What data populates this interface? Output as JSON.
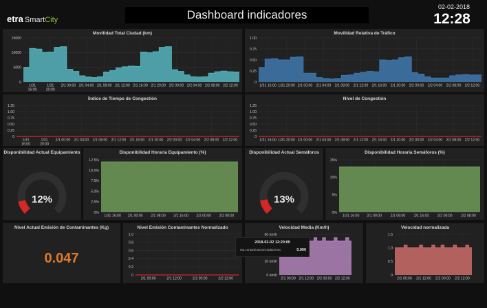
{
  "header": {
    "logo_etra": "etra",
    "logo_smart": "Smart",
    "logo_city": "City",
    "title": "Dashboard indicadores",
    "date": "02-02-2018",
    "time": "12:28"
  },
  "panels": {
    "movilidad_total": {
      "title": "Movilidad Total Ciudad (km)"
    },
    "movilidad_relativa": {
      "title": "Movilidad Relativa de Tráfico"
    },
    "indice_congestion": {
      "title": "Índice de Tiempo de Congestión"
    },
    "nivel_congestion": {
      "title": "Nivel de Congestión"
    },
    "disp_equipamiento": {
      "title": "Disponibilidad Actual Equipamiento",
      "value": "12%"
    },
    "disp_horaria_equipamiento": {
      "title": "Disponibilidad Horaria Equipamiento (%)"
    },
    "disp_semaforos": {
      "title": "Disponibilidad Actual Semáforos",
      "value": "13%"
    },
    "disp_horaria_semaforos": {
      "title": "Disponibilidad Horaria Semáforos (%)"
    },
    "emision_actual": {
      "title": "Nivel Actual Emisión de Contaminantes (Kg)",
      "value": "0.047"
    },
    "emision_normalizado": {
      "title": "Nivel Emisión Contaminantes Normalizado"
    },
    "velocidad_media": {
      "title": "Velocidad Media (Km/h)"
    },
    "velocidad_normalizada": {
      "title": "Velocidad normalizada"
    }
  },
  "tooltip": {
    "time": "2018-02-02 12:20:00",
    "series": "etu.contaminacionciudad.mnc",
    "value": "0.000"
  },
  "colors": {
    "teal": "#55b4bd",
    "blue": "#3e78ae",
    "red": "#d62727",
    "green": "#6e9a58",
    "orange": "#e07a2f",
    "purple": "#b283bb",
    "salmon": "#cc6c68"
  },
  "chart_data": [
    {
      "type": "area",
      "title": "Movilidad Total Ciudad (km)",
      "xticks": [
        "1/31\n16:00",
        "1/31\n20:00",
        "2/1 00:00",
        "2/1 04:00",
        "2/1 08:00",
        "2/1 12:00",
        "2/1 16:00",
        "2/1 20:00",
        "2/2 00:00",
        "2/2 04:00",
        "2/2 08:00",
        "2/2 12:00"
      ],
      "yticks": [
        "0",
        "5000",
        "10000",
        "15000"
      ],
      "ylim": [
        0,
        15000
      ],
      "values": [
        5000,
        11400,
        11200,
        10100,
        10200,
        11800,
        12000,
        4300,
        3600,
        2100,
        1700,
        1500,
        1800,
        3400,
        3900,
        4800,
        5200,
        5400,
        5300,
        10200,
        10000,
        10300,
        11800,
        12000,
        4200,
        3600,
        2400,
        1800,
        1700,
        1800,
        3000,
        3500,
        3700,
        3500,
        3400,
        3300
      ]
    },
    {
      "type": "area",
      "title": "Movilidad Relativa de Tráfico",
      "xticks": [
        "1/31 16:00",
        "1/31 20:00",
        "2/1 00:00",
        "2/1 04:00",
        "2/1 08:00",
        "2/1 12:00",
        "2/1 16:00",
        "2/1 20:00",
        "2/2 00:00",
        "2/2 04:00",
        "2/2 08:00",
        "2/2 12:00"
      ],
      "yticks": [
        "0",
        "0.25",
        "0.50",
        "0.75",
        "1.00"
      ],
      "ylim": [
        0,
        1.0
      ],
      "values": [
        0.33,
        0.52,
        0.53,
        0.5,
        0.5,
        0.56,
        0.57,
        0.2,
        0.2,
        0.1,
        0.08,
        0.07,
        0.08,
        0.15,
        0.16,
        0.2,
        0.22,
        0.24,
        0.23,
        0.5,
        0.49,
        0.5,
        0.55,
        0.57,
        0.21,
        0.18,
        0.12,
        0.09,
        0.09,
        0.09,
        0.14,
        0.16,
        0.17,
        0.16,
        0.16,
        0.16
      ]
    },
    {
      "type": "line",
      "title": "Índice de Tiempo de Congestión",
      "xticks": [
        "1/31\n16:00",
        "1/31\n20:00",
        "2/1 00:00",
        "2/1 04:00",
        "2/1 08:00",
        "2/1 12:00",
        "2/1 16:00",
        "2/1 20:00",
        "2/2 00:00",
        "2/2 04:00",
        "2/2 08:00",
        "2/2 12:00"
      ],
      "yticks": [
        "0",
        "0.25",
        "0.50",
        "0.75",
        "1.00",
        "1.25"
      ],
      "ylim": [
        0,
        1.25
      ],
      "values": [
        0,
        0
      ]
    },
    {
      "type": "line",
      "title": "Nivel de Congestión",
      "xticks": [
        "1/31 16:00",
        "1/31 20:00",
        "2/1 00:00",
        "2/1 04:00",
        "2/1 08:00",
        "2/1 12:00",
        "2/1 16:00",
        "2/1 20:00",
        "2/2 00:00",
        "2/2 04:00",
        "2/2 08:00",
        "2/2 12:00"
      ],
      "yticks": [
        "0",
        "0.25",
        "0.50",
        "0.75",
        "1.00",
        "1.25"
      ],
      "ylim": [
        0,
        1.25
      ],
      "values": [
        0,
        0
      ]
    },
    {
      "type": "area",
      "title": "Disponibilidad Horaria Equipamiento (%)",
      "xticks": [
        "1/31 16:00",
        "2/1 00:00",
        "2/1 08:00",
        "2/1 16:00",
        "2/2 00:00",
        "2/2 08:00"
      ],
      "yticks": [
        "0%",
        "2.5%",
        "5.0%",
        "7.5%",
        "10.0%",
        "12.5%"
      ],
      "ylim": [
        0,
        12.5
      ],
      "values": [
        12.0,
        12.0
      ]
    },
    {
      "type": "area",
      "title": "Disponibilidad Horaria Semáforos (%)",
      "xticks": [
        "1/31 16:00",
        "2/1 00:00",
        "2/1 08:00",
        "2/1 16:00",
        "2/2 00:00",
        "2/2 08:00"
      ],
      "yticks": [
        "0%",
        "5%",
        "10%",
        "15%"
      ],
      "ylim": [
        0,
        15
      ],
      "values": [
        13,
        13
      ]
    },
    {
      "type": "line",
      "title": "Nivel Emisión Contaminantes Normalizado",
      "xticks": [
        "2/1 00:00",
        "2/1 12:00",
        "2/2 00:00",
        "2/2 12:00"
      ],
      "yticks": [
        "0",
        "0.2",
        "0.4",
        "0.6",
        "0.8",
        "1.0"
      ],
      "ylim": [
        0,
        1.0
      ],
      "values": [
        0,
        0
      ]
    },
    {
      "type": "area",
      "title": "Velocidad Media (Km/h)",
      "xticks": [
        "2/1 00:00",
        "2/1 12:00",
        "2/2 00:00",
        "2/2 12:00"
      ],
      "yticks": [
        "0 km/h",
        "20 km/h",
        "40 km/h",
        "60 km/h"
      ],
      "ylim": [
        0,
        60
      ],
      "values": [
        50,
        50,
        50,
        55,
        50,
        50,
        50,
        50,
        55,
        50,
        50,
        50,
        55,
        50,
        50,
        55,
        50,
        50,
        50,
        55,
        50,
        50,
        50,
        55,
        50,
        50
      ]
    },
    {
      "type": "area",
      "title": "Velocidad normalizada",
      "xticks": [
        "2/1 00:00",
        "2/1 12:00",
        "2/2 00:00",
        "2/2 12:00"
      ],
      "yticks": [
        "0",
        "0.5",
        "1.0",
        "1.5"
      ],
      "ylim": [
        0,
        1.5
      ],
      "values": [
        1.0,
        1.0,
        1.0,
        1.1,
        1.0,
        1.0,
        1.0,
        1.0,
        1.1,
        1.0,
        1.0,
        1.0,
        1.1,
        1.0,
        1.0,
        1.1,
        1.0,
        1.0,
        1.0,
        1.1,
        1.0,
        1.0,
        1.0,
        1.1,
        1.0,
        1.0
      ]
    }
  ],
  "gauges": [
    {
      "name": "Disponibilidad Actual Equipamiento",
      "value": 12
    },
    {
      "name": "Disponibilidad Actual Semáforos",
      "value": 13
    }
  ]
}
